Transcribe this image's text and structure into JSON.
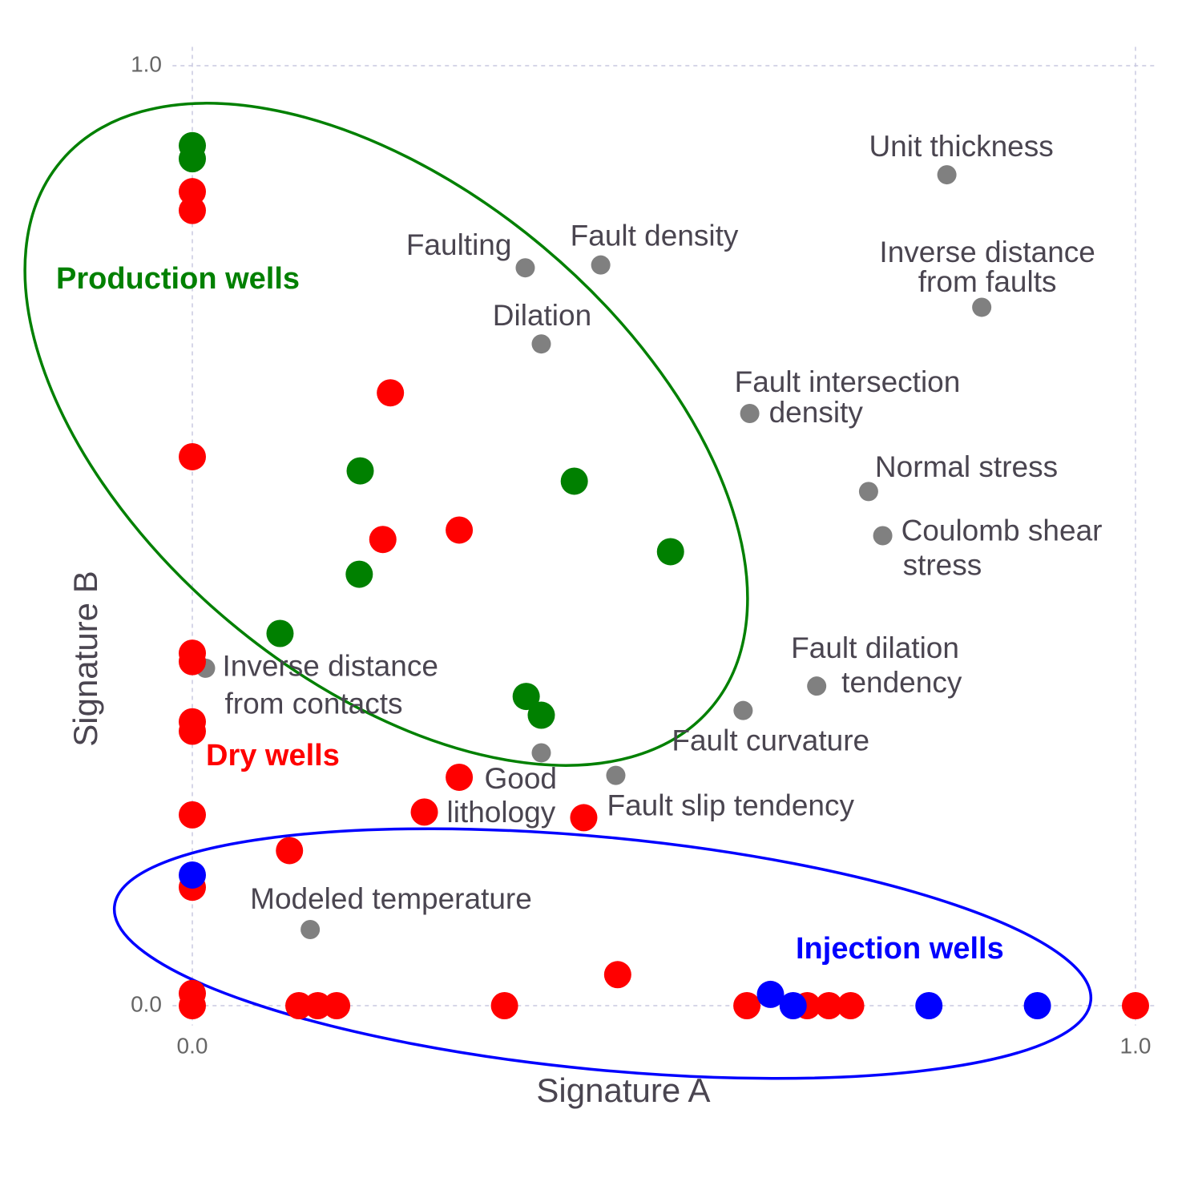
{
  "chart_data": {
    "type": "scatter",
    "xlabel": "Signature A",
    "ylabel": "Signature B",
    "xlim": [
      -0.021,
      1.02
    ],
    "ylim": [
      -0.021,
      1.02
    ],
    "xticks": [
      {
        "value": 0,
        "label": "0.0"
      },
      {
        "value": 1,
        "label": "1.0"
      }
    ],
    "yticks": [
      {
        "value": 0,
        "label": "0.0"
      },
      {
        "value": 1,
        "label": "1.0"
      }
    ],
    "grid": true,
    "series": [
      {
        "name": "Production wells",
        "color": "#008000",
        "x": [
          0,
          0,
          0.178,
          0.405,
          0.507,
          0.177,
          0.093,
          0.354,
          0.37
        ],
        "values": [
          0.915,
          0.901,
          0.569,
          0.558,
          0.483,
          0.459,
          0.396,
          0.329,
          0.309
        ]
      },
      {
        "name": "Dry wells",
        "color": "#ff0000",
        "x": [
          0,
          0,
          0.21,
          0,
          0.202,
          0.283,
          0,
          0,
          0,
          0,
          0.283,
          0,
          0.246,
          0.415,
          0.103,
          0,
          0.451,
          0,
          0,
          0.113,
          0.133,
          0.153,
          0.331,
          0.588,
          0.652,
          0.675,
          0.698,
          1.0
        ],
        "values": [
          0.866,
          0.846,
          0.652,
          0.584,
          0.496,
          0.506,
          0.375,
          0.366,
          0.302,
          0.292,
          0.243,
          0.203,
          0.206,
          0.2,
          0.165,
          0.126,
          0.033,
          0.013,
          0,
          0,
          0,
          0,
          0,
          0,
          0,
          0,
          0,
          0
        ]
      },
      {
        "name": "Injection wells",
        "color": "#0000ff",
        "x": [
          0,
          0.613,
          0.637,
          0.781,
          0.896
        ],
        "values": [
          0.139,
          0.012,
          0,
          0,
          0
        ]
      },
      {
        "color": "#808080",
        "x": [
          0.8,
          0.353,
          0.433,
          0.837,
          0.37,
          0.591,
          0.717,
          0.732,
          0.662,
          0.584,
          0.014,
          0.37,
          0.449,
          0.125
        ],
        "values": [
          0.884,
          0.785,
          0.788,
          0.743,
          0.704,
          0.63,
          0.547,
          0.5,
          0.34,
          0.314,
          0.359,
          0.269,
          0.245,
          0.081
        ],
        "labels": [
          [
            "Unit thickness"
          ],
          [
            "Faulting"
          ],
          [
            "Fault density"
          ],
          [
            "Inverse distance",
            "from faults"
          ],
          [
            "Dilation"
          ],
          [
            "Fault intersection",
            "density"
          ],
          [
            "Normal stress"
          ],
          [
            "Coulomb shear",
            "stress"
          ],
          [
            "Fault dilation",
            "tendency"
          ],
          [
            "Fault curvature"
          ],
          [
            "Inverse distance",
            "from contacts"
          ],
          [
            "Good",
            "lithology"
          ],
          [
            "Fault slip tendency"
          ],
          [
            "Modeled temperature"
          ]
        ]
      }
    ]
  }
}
